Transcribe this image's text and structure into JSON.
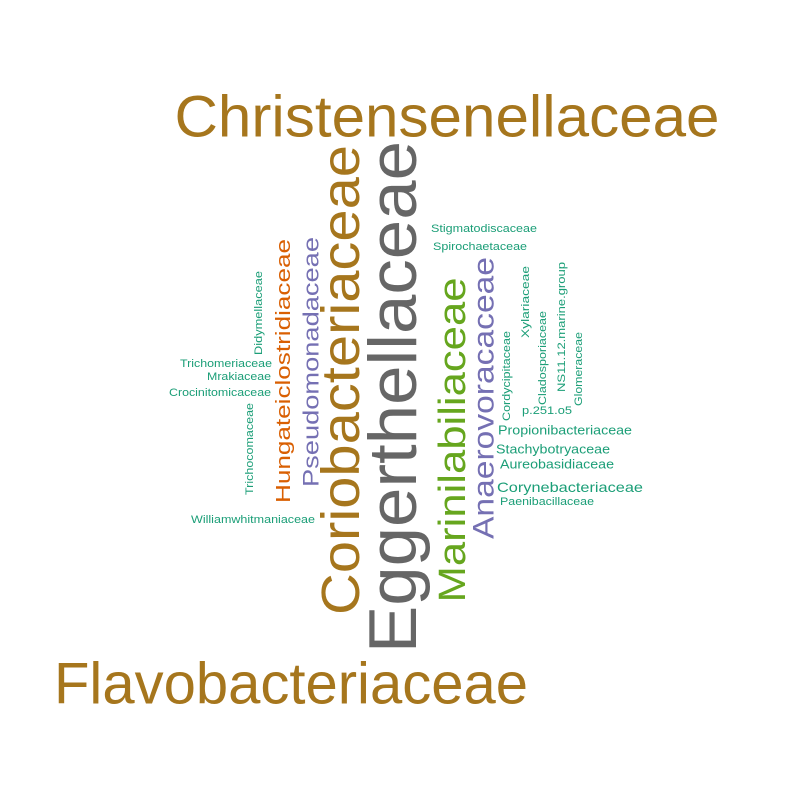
{
  "colors": {
    "gold": "#A6761D",
    "gray": "#666666",
    "orange": "#D95F02",
    "purple": "#7570B3",
    "green": "#66A61E",
    "teal": "#1B9E77",
    "background": "#FFFFFF"
  },
  "words": [
    {
      "text": "Christensenellaceae",
      "color": "gold"
    },
    {
      "text": "Flavobacteriaceae",
      "color": "gold"
    },
    {
      "text": "Eggerthellaceae",
      "color": "gray"
    },
    {
      "text": "Coriobacteriaceae",
      "color": "gold"
    },
    {
      "text": "Marinilabiliaceae",
      "color": "green"
    },
    {
      "text": "Anaerovoracaceae",
      "color": "purple"
    },
    {
      "text": "Pseudomonadaceae",
      "color": "purple"
    },
    {
      "text": "Hungateiclostridiaceae",
      "color": "orange"
    },
    {
      "text": "Stigmatodiscaceae",
      "color": "teal"
    },
    {
      "text": "Spirochaetaceae",
      "color": "teal"
    },
    {
      "text": "Didymellaceae",
      "color": "teal"
    },
    {
      "text": "Trichomeriaceae",
      "color": "teal"
    },
    {
      "text": "Mrakiaceae",
      "color": "teal"
    },
    {
      "text": "Crocinitomicaceae",
      "color": "teal"
    },
    {
      "text": "Trichocomaceae",
      "color": "teal"
    },
    {
      "text": "Williamwhitmaniaceae",
      "color": "teal"
    },
    {
      "text": "NS11.12.marine.group",
      "color": "teal"
    },
    {
      "text": "Xylariaceae",
      "color": "teal"
    },
    {
      "text": "Cladosporiaceae",
      "color": "teal"
    },
    {
      "text": "Glomeraceae",
      "color": "teal"
    },
    {
      "text": "Cordycipitaceae",
      "color": "teal"
    },
    {
      "text": "p.251.o5",
      "color": "teal"
    },
    {
      "text": "Propionibacteriaceae",
      "color": "teal"
    },
    {
      "text": "Stachybotryaceae",
      "color": "teal"
    },
    {
      "text": "Aureobasidiaceae",
      "color": "teal"
    },
    {
      "text": "Corynebacteriaceae",
      "color": "teal"
    },
    {
      "text": "Paenibacillaceae",
      "color": "teal"
    }
  ]
}
